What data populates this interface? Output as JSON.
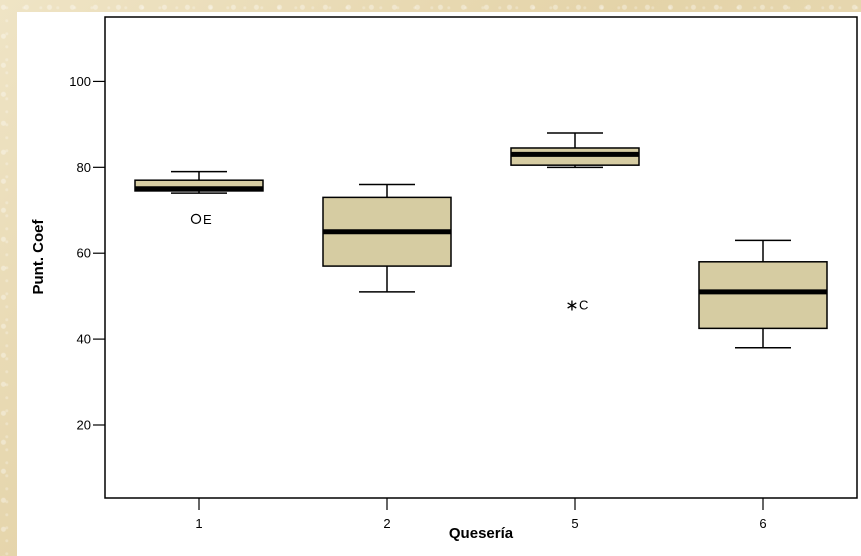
{
  "chart_data": {
    "type": "boxplot",
    "xlabel": "Quesería",
    "ylabel": "Punt. Coef",
    "ylim": [
      3,
      115
    ],
    "yticks": [
      20,
      40,
      60,
      80,
      100
    ],
    "categories": [
      "1",
      "2",
      "5",
      "6"
    ],
    "box_color": "#d6cca2",
    "boxes": [
      {
        "category": "1",
        "whisker_low": 74,
        "q1": 74.5,
        "median": 75,
        "q3": 77,
        "whisker_high": 79,
        "outliers": [
          {
            "value": 68,
            "marker": "circle",
            "label": "E"
          }
        ]
      },
      {
        "category": "2",
        "whisker_low": 51,
        "q1": 57,
        "median": 65,
        "q3": 73,
        "whisker_high": 76,
        "outliers": []
      },
      {
        "category": "5",
        "whisker_low": 80,
        "q1": 80.5,
        "median": 83,
        "q3": 84.5,
        "whisker_high": 88,
        "outliers": [
          {
            "value": 48,
            "marker": "star",
            "label": "C"
          }
        ]
      },
      {
        "category": "6",
        "whisker_low": 38,
        "q1": 42.5,
        "median": 51,
        "q3": 58,
        "whisker_high": 63,
        "outliers": []
      }
    ]
  }
}
